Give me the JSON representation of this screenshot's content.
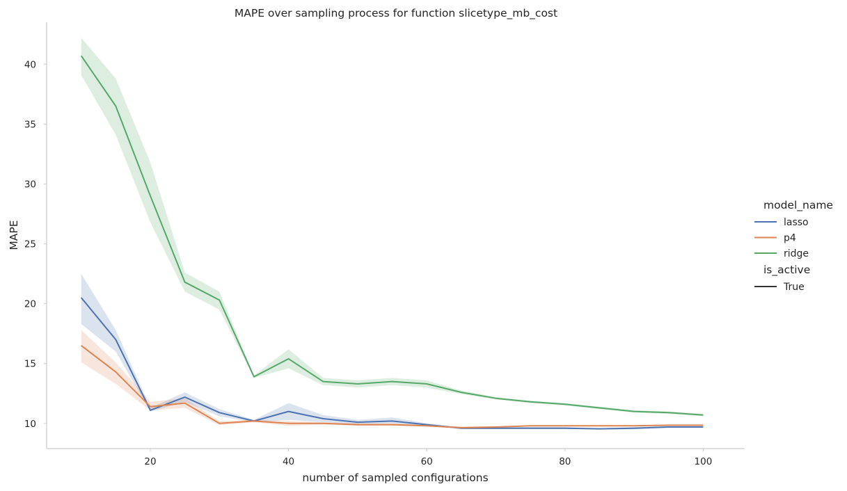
{
  "chart_data": {
    "type": "line",
    "title": "MAPE over sampling process for function slicetype_mb_cost",
    "xlabel": "number of sampled configurations",
    "ylabel": "MAPE",
    "xlim": [
      5,
      106
    ],
    "ylim": [
      7.9,
      43.5
    ],
    "xticks": [
      20,
      40,
      60,
      80,
      100
    ],
    "yticks": [
      10,
      15,
      20,
      25,
      30,
      35,
      40
    ],
    "grid": false,
    "legend_position": "right",
    "x": [
      10,
      15,
      20,
      25,
      30,
      35,
      40,
      45,
      50,
      55,
      60,
      65,
      70,
      75,
      80,
      85,
      90,
      95,
      100
    ],
    "series": [
      {
        "name": "lasso",
        "color": "#4c72b0",
        "values": [
          20.5,
          17.0,
          11.1,
          12.2,
          10.9,
          10.2,
          11.0,
          10.4,
          10.1,
          10.2,
          9.9,
          9.6,
          9.6,
          9.6,
          9.6,
          9.55,
          9.6,
          9.7,
          9.7
        ],
        "ci_low": [
          18.3,
          16.0,
          11.0,
          11.8,
          10.6,
          10.1,
          10.3,
          10.1,
          9.95,
          10.0,
          9.8,
          9.55,
          9.55,
          9.55,
          9.55,
          9.5,
          9.5,
          9.65,
          9.65
        ],
        "ci_high": [
          22.5,
          17.8,
          11.3,
          12.6,
          11.2,
          10.3,
          11.7,
          10.7,
          10.3,
          10.5,
          10.0,
          9.7,
          9.7,
          9.7,
          9.7,
          9.6,
          9.7,
          9.8,
          9.8
        ]
      },
      {
        "name": "p4",
        "color": "#dd8452",
        "values": [
          16.5,
          14.3,
          11.4,
          11.7,
          10.0,
          10.2,
          10.0,
          10.0,
          9.9,
          9.9,
          9.8,
          9.65,
          9.7,
          9.8,
          9.8,
          9.8,
          9.8,
          9.85,
          9.85
        ],
        "ci_low": [
          15.1,
          13.3,
          11.1,
          11.3,
          9.85,
          10.1,
          9.8,
          9.9,
          9.8,
          9.8,
          9.75,
          9.6,
          9.65,
          9.75,
          9.75,
          9.75,
          9.75,
          9.8,
          9.8
        ],
        "ci_high": [
          17.8,
          15.1,
          11.8,
          12.1,
          10.2,
          10.3,
          10.2,
          10.1,
          10.0,
          10.0,
          9.9,
          9.7,
          9.75,
          9.85,
          9.85,
          9.85,
          9.85,
          9.9,
          9.9
        ]
      },
      {
        "name": "ridge",
        "color": "#55a868",
        "values": [
          40.7,
          36.5,
          29.0,
          21.8,
          20.3,
          13.9,
          15.4,
          13.5,
          13.3,
          13.5,
          13.3,
          12.6,
          12.1,
          11.8,
          11.6,
          11.3,
          11.0,
          10.9,
          10.7
        ],
        "ci_low": [
          39.1,
          34.1,
          26.8,
          21.0,
          19.5,
          13.8,
          14.6,
          13.2,
          13.0,
          13.2,
          13.0,
          12.45,
          12.0,
          11.7,
          11.5,
          11.2,
          10.9,
          10.8,
          10.6
        ],
        "ci_high": [
          42.2,
          38.8,
          31.8,
          22.6,
          21.0,
          14.0,
          16.2,
          13.8,
          13.6,
          13.8,
          13.6,
          12.75,
          12.2,
          11.9,
          11.7,
          11.4,
          11.1,
          11.0,
          10.8
        ]
      }
    ],
    "legend": {
      "hue_title": "model_name",
      "style_title": "is_active",
      "style_entries": [
        {
          "name": "True",
          "color": "#333333"
        }
      ]
    }
  }
}
